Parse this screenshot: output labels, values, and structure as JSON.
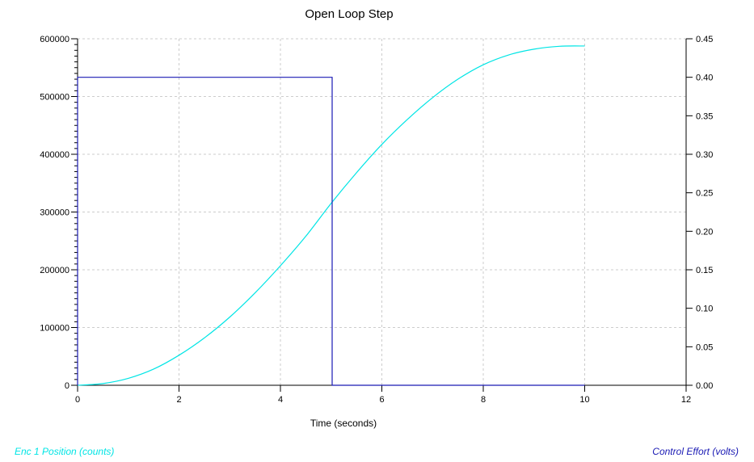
{
  "chart_data": {
    "type": "line",
    "title": "Open Loop Step",
    "xlabel": "Time (seconds)",
    "xlim": [
      0,
      12
    ],
    "xticks": [
      0,
      2,
      4,
      6,
      8,
      10,
      12
    ],
    "ylim_left": [
      0,
      600000
    ],
    "yticks_left": [
      0,
      100000,
      200000,
      300000,
      400000,
      500000,
      600000
    ],
    "ylim_right": [
      0,
      0.45
    ],
    "yticks_right": [
      "0.00",
      "0.05",
      "0.10",
      "0.15",
      "0.20",
      "0.25",
      "0.30",
      "0.35",
      "0.40",
      "0.45"
    ],
    "grid": true,
    "colors": {
      "position": "#00e5e5",
      "effort": "#1a1ab4"
    },
    "series": [
      {
        "name": "Enc 1 Position (counts)",
        "axis": "left",
        "x": [
          0,
          0.5,
          1,
          1.5,
          2,
          2.5,
          3,
          3.5,
          4,
          4.5,
          5,
          5.5,
          6,
          6.5,
          7,
          7.5,
          8,
          8.5,
          9,
          9.5,
          10
        ],
        "values": [
          0,
          3000,
          12000,
          28000,
          52000,
          82000,
          118000,
          160000,
          207000,
          258000,
          315000,
          368000,
          417000,
          460000,
          498000,
          530000,
          555000,
          572000,
          582000,
          587000,
          587500
        ]
      },
      {
        "name": "Control Effort (volts)",
        "axis": "right",
        "x": [
          0,
          0,
          5.02,
          5.02,
          5.02,
          10
        ],
        "values": [
          0,
          0.4,
          0.4,
          0.2,
          0,
          0
        ]
      }
    ],
    "legend_left": "Enc 1 Position (counts)",
    "legend_right": "Control Effort (volts)"
  }
}
